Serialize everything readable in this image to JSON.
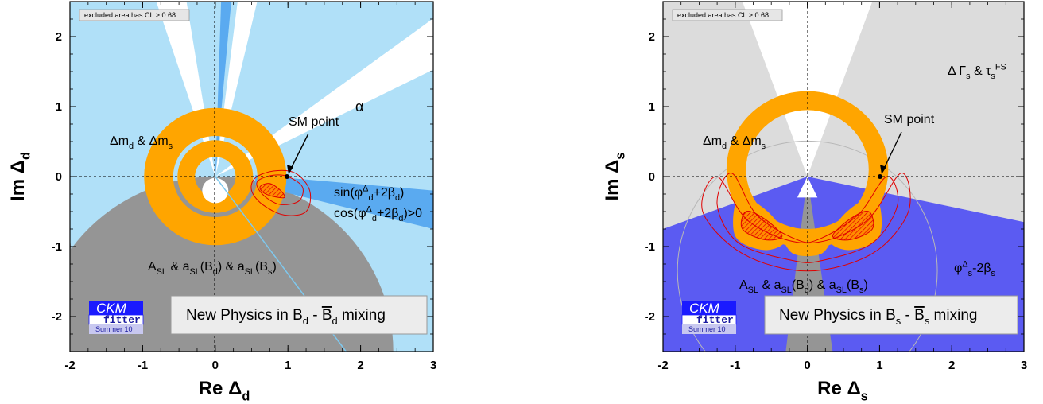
{
  "chart_data": [
    {
      "type": "contour",
      "xlabel": "Re Δ",
      "xlabel_sub": "d",
      "ylabel": "Im Δ",
      "ylabel_sub": "d",
      "xlim": [
        -2,
        3
      ],
      "ylim": [
        -2.5,
        2.5
      ],
      "xticks": [
        "-2",
        "-1",
        "0",
        "1",
        "2",
        "3"
      ],
      "yticks": [
        "-2",
        "-1",
        "0",
        "1",
        "2"
      ],
      "note": "excluded area has CL > 0.68",
      "sm_point": [
        1,
        0
      ],
      "sm_label": "SM point",
      "box_label": "New Physics in B",
      "box_sub1": "d",
      "box_mid": " - ",
      "box_bar": "B",
      "box_sub2": "d",
      "box_tail": " mixing",
      "logo_main": "CKM",
      "logo_sub": "fitter",
      "logo_year": "Summer 10",
      "ring_label": {
        "text": "Δm",
        "sub1": "d",
        "mid": " & Δm",
        "sub2": "s"
      },
      "alpha_label": "α",
      "sin_label": {
        "a": "sin(φ",
        "sup": "Δ",
        "sub": "d",
        "b": "+2β",
        "sub2": "d",
        "c": ")"
      },
      "cos_label": {
        "a": "cos(φ",
        "sup": "Δ",
        "sub": "d",
        "b": "+2β",
        "sub2": "d",
        "c": ")>0"
      },
      "asl_label": {
        "a": "A",
        "s1": "SL",
        "b": " & a",
        "s2": "SL",
        "c": "(B",
        "s3": "d",
        "d": ") & a",
        "s4": "SL",
        "e": "(B",
        "s5": "s",
        "f": ")"
      },
      "colors": {
        "light_blue": "#b0e0f8",
        "mid_blue": "#5aaaf0",
        "gray": "#959595",
        "orange": "#ffa500",
        "red": "#e00000"
      },
      "rings": [
        {
          "r_in": 0.58,
          "r_out": 0.98
        },
        {
          "r_in": 0.28,
          "r_out": 0.52
        }
      ]
    },
    {
      "type": "contour",
      "xlabel": "Re Δ",
      "xlabel_sub": "s",
      "ylabel": "Im Δ",
      "ylabel_sub": "s",
      "xlim": [
        -2,
        3
      ],
      "ylim": [
        -2.5,
        2.5
      ],
      "xticks": [
        "-2",
        "-1",
        "0",
        "1",
        "2",
        "3"
      ],
      "yticks": [
        "-2",
        "-1",
        "0",
        "1",
        "2"
      ],
      "note": "excluded area has CL > 0.68",
      "sm_point": [
        1,
        0
      ],
      "sm_label": "SM point",
      "box_label": "New Physics in B",
      "box_sub1": "s",
      "box_mid": " - ",
      "box_bar": "B",
      "box_sub2": "s",
      "box_tail": " mixing",
      "logo_main": "CKM",
      "logo_sub": "fitter",
      "logo_year": "Summer 10",
      "ring_label": {
        "text": "Δm",
        "sub1": "d",
        "mid": " & Δm",
        "sub2": "s"
      },
      "gamma_label": {
        "a": "Δ Γ",
        "s1": "s",
        "b": " & τ",
        "s2": "s",
        "sup": "FS"
      },
      "phi_label": {
        "a": "φ",
        "sup": "Δ",
        "s1": "s",
        "b": "-2β",
        "s2": "s"
      },
      "asl_label": {
        "a": "A",
        "s1": "SL",
        "b": " & a",
        "s2": "SL",
        "c": "(B",
        "s3": "d",
        "d": ") & a",
        "s4": "SL",
        "e": "(B",
        "s5": "s",
        "f": ")"
      },
      "colors": {
        "light_gray": "#dcdcdc",
        "blue": "#5b5bf2",
        "gray": "#959595",
        "orange": "#ffa500",
        "red": "#e00000"
      },
      "rings": [
        {
          "r_in": 0.85,
          "r_out": 1.12
        }
      ]
    }
  ]
}
